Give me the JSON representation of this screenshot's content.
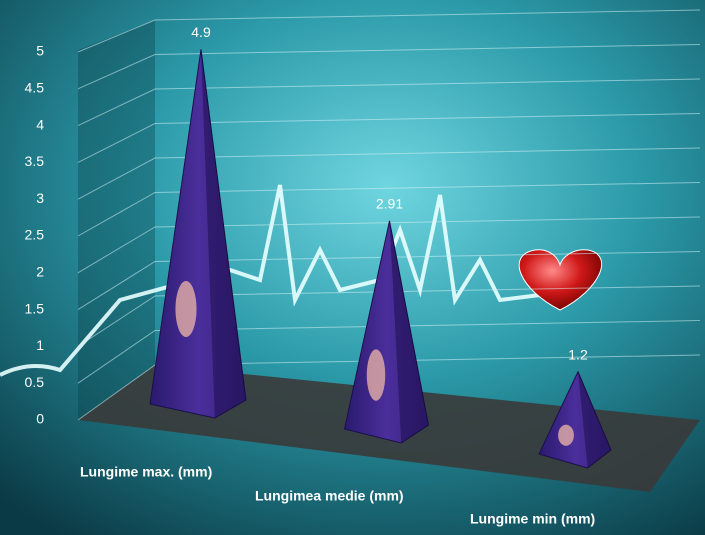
{
  "chart_data": {
    "type": "pyramid",
    "categories": [
      "Lungime max. (mm)",
      "Lungimea medie (mm)",
      "Lungime min (mm)"
    ],
    "values": [
      4.9,
      2.91,
      1.2
    ],
    "color": "#3a2384",
    "ylim": [
      0,
      5
    ],
    "yticks": [
      0,
      0.5,
      1,
      1.5,
      2,
      2.5,
      3,
      3.5,
      4,
      4.5,
      5
    ],
    "grid": true
  }
}
